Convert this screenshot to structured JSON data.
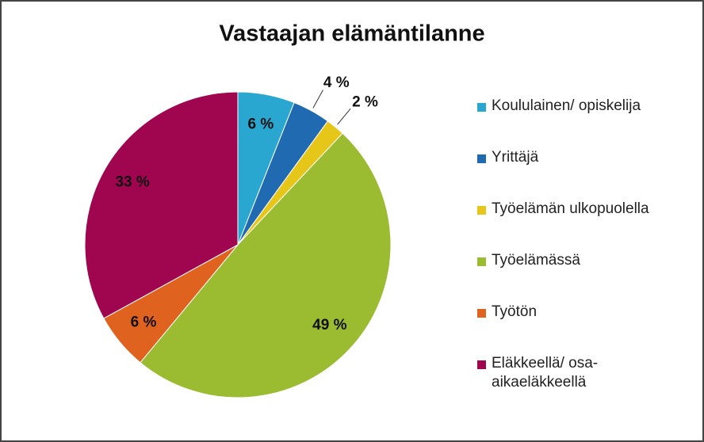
{
  "chart_data": {
    "type": "pie",
    "title": "Vastaajan elämäntilanne",
    "categories": [
      "Koululainen/ opiskelija",
      "Yrittäjä",
      "Työelämän ulkopuolella",
      "Työelämässä",
      "Työtön",
      "Eläkkeellä/ osa-aikaeläkkeellä"
    ],
    "values": [
      6,
      4,
      2,
      49,
      6,
      33
    ],
    "value_labels": [
      "6 %",
      "4 %",
      "2 %",
      "49 %",
      "6 %",
      "33 %"
    ],
    "colors": [
      "#2aa7d0",
      "#1f6ab0",
      "#e6c619",
      "#9bbb30",
      "#e0621f",
      "#a0054f"
    ],
    "legend": "right"
  }
}
